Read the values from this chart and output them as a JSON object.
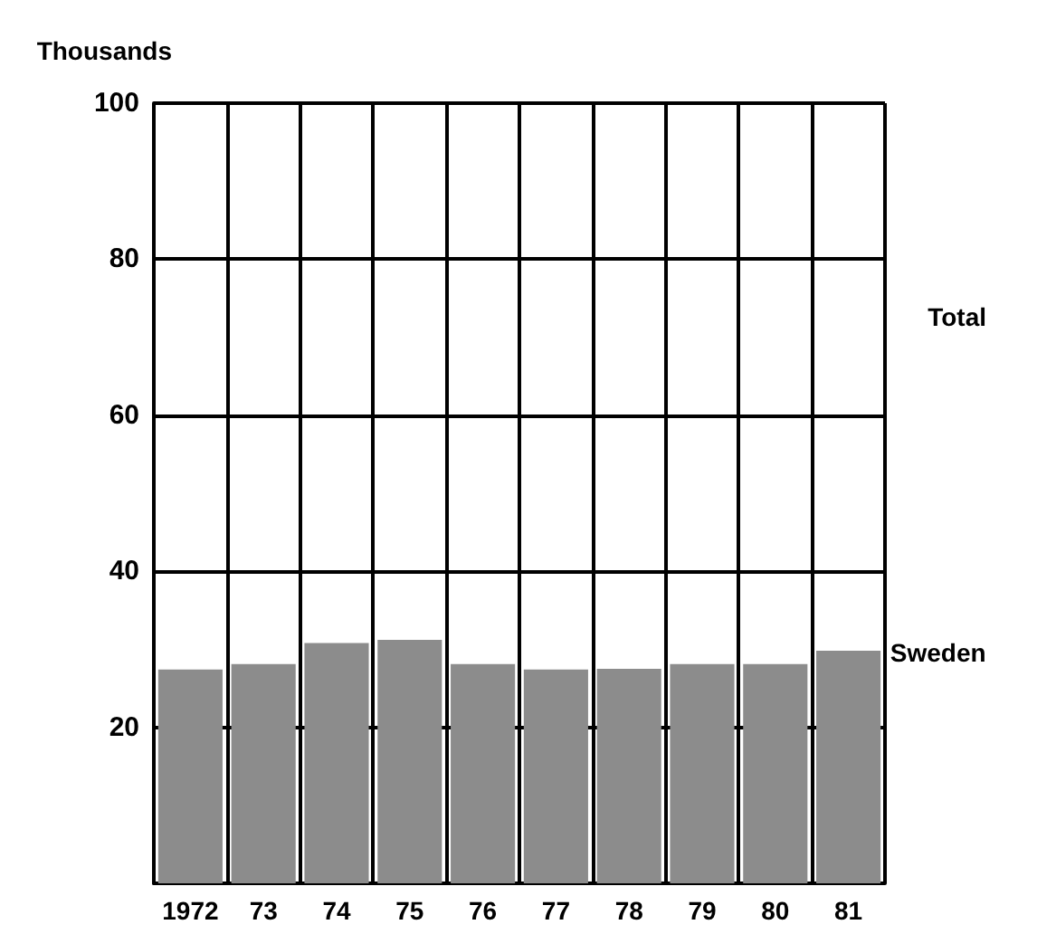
{
  "chart_data": {
    "type": "bar",
    "ylabel": "Thousands",
    "categories": [
      "1972",
      "73",
      "74",
      "75",
      "76",
      "77",
      "78",
      "79",
      "80",
      "81"
    ],
    "series": [
      {
        "name": "Sweden",
        "color": "#8c8c8c",
        "values": [
          27.4,
          28.1,
          30.8,
          31.2,
          28.1,
          27.4,
          27.5,
          28.1,
          28.1,
          29.8
        ]
      }
    ],
    "annotations": [
      "Total"
    ],
    "ylim": [
      0,
      100
    ],
    "yticks": [
      {
        "value": 0,
        "label": null
      },
      20,
      40,
      60,
      80,
      100
    ],
    "grid": true,
    "legend": false
  }
}
